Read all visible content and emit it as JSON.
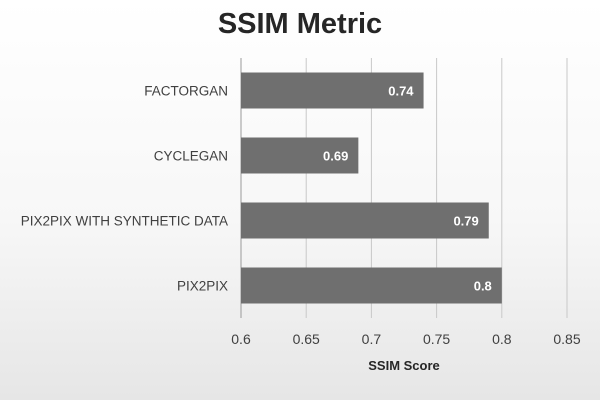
{
  "chart_data": {
    "type": "bar",
    "orientation": "horizontal",
    "title": "SSIM Metric",
    "xlabel": "SSIM Score",
    "ylabel": "",
    "categories": [
      "FACTORGAN",
      "CYCLEGAN",
      "PIX2PIX WITH SYNTHETIC DATA",
      "PIX2PIX"
    ],
    "values": [
      0.74,
      0.69,
      0.79,
      0.8
    ],
    "value_labels": [
      "0.74",
      "0.69",
      "0.79",
      "0.8"
    ],
    "xlim": [
      0.6,
      0.85
    ],
    "xticks": [
      0.6,
      0.65,
      0.7,
      0.75,
      0.8,
      0.85
    ],
    "xtick_labels": [
      "0.6",
      "0.65",
      "0.7",
      "0.75",
      "0.8",
      "0.85"
    ],
    "grid": true,
    "colors": {
      "bar": "#6f6f6f",
      "grid": "#c8c8c8",
      "text": "#404040"
    }
  }
}
